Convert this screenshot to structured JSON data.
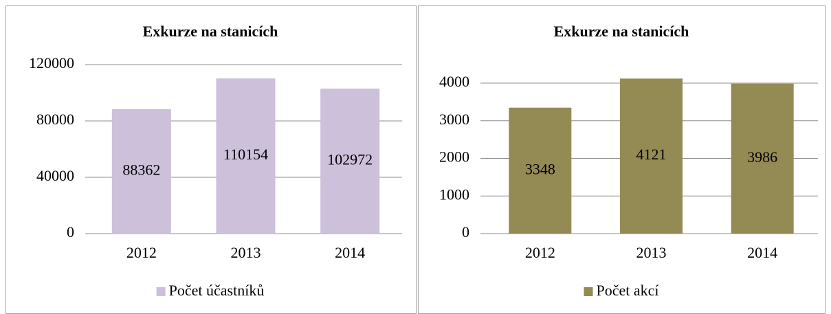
{
  "chart_data": [
    {
      "type": "bar",
      "title": "Exkurze na stanicích",
      "categories": [
        "2012",
        "2013",
        "2014"
      ],
      "series": [
        {
          "name": "Počet účastníků",
          "color": "#ccc0da",
          "values": [
            88362,
            110154,
            102972
          ]
        }
      ],
      "ylim": [
        0,
        120000
      ],
      "yticks": [
        0,
        40000,
        80000,
        120000
      ],
      "grid": true,
      "legend": "bottom"
    },
    {
      "type": "bar",
      "title": "Exkurze na stanicích",
      "categories": [
        "2012",
        "2013",
        "2014"
      ],
      "series": [
        {
          "name": "Počet akcí",
          "color": "#948a54",
          "values": [
            3348,
            4121,
            3986
          ]
        }
      ],
      "ylim": [
        0,
        4000
      ],
      "yticks": [
        0,
        1000,
        2000,
        3000,
        4000
      ],
      "grid": true,
      "legend": "bottom"
    }
  ]
}
